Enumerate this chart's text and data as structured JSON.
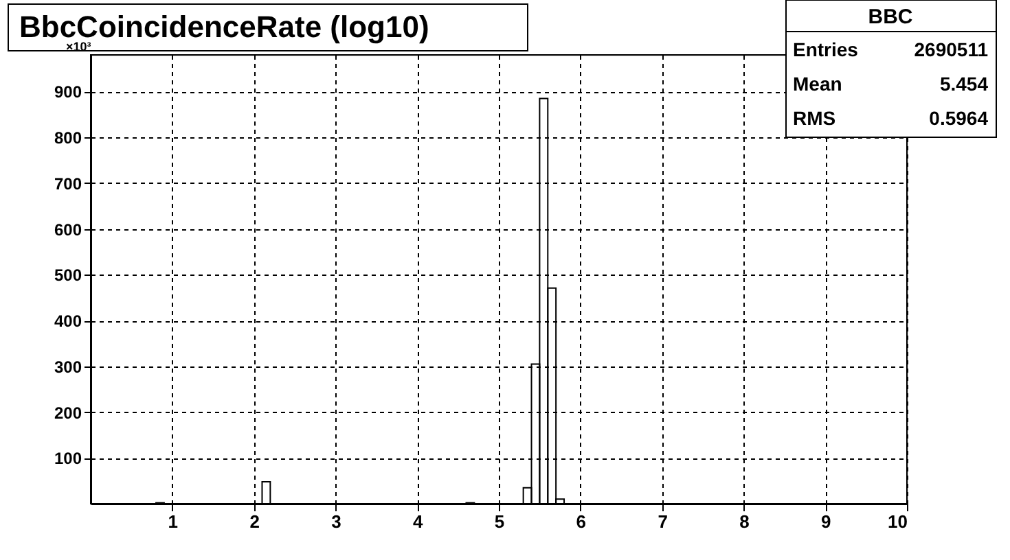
{
  "chart_data": {
    "type": "histogram",
    "title": "BbcCoincidenceRate (log10)",
    "ylabel": "×10³",
    "bins": [
      0,
      0.1,
      0.2,
      0.3,
      0.4,
      0.5,
      0.6,
      0.7,
      0.8,
      0.9,
      1,
      1.1,
      1.2,
      1.3,
      1.4,
      1.5,
      1.6,
      1.7,
      1.8,
      1.9,
      2,
      2.1,
      2.2,
      2.3,
      2.4,
      2.5,
      2.6,
      2.7,
      2.8,
      2.9,
      3,
      3.1,
      3.2,
      3.3,
      3.4,
      3.5,
      3.6,
      3.7,
      3.8,
      3.9,
      4,
      4.1,
      4.2,
      4.3,
      4.4,
      4.5,
      4.6,
      4.7,
      4.8,
      4.9,
      5,
      5.1,
      5.2,
      5.3,
      5.4,
      5.5,
      5.6,
      5.7,
      5.8,
      5.9,
      6,
      6.1,
      6.2,
      6.3,
      6.4,
      6.5,
      6.6,
      6.7,
      6.8,
      6.9,
      7,
      7.1,
      7.2,
      7.3,
      7.4,
      7.5,
      7.6,
      7.7,
      7.8,
      7.9,
      8,
      8.1,
      8.2,
      8.3,
      8.4,
      8.5,
      8.6,
      8.7,
      8.8,
      8.9,
      9,
      9.1,
      9.2,
      9.3,
      9.4,
      9.5,
      9.6,
      9.7,
      9.8,
      9.9,
      10
    ],
    "values": [
      0,
      0,
      0,
      0,
      0,
      0,
      0,
      0,
      2,
      0,
      0,
      0,
      0,
      0,
      0,
      0,
      0,
      0,
      0,
      0,
      0,
      48,
      0,
      0,
      0,
      0,
      0,
      0,
      0,
      0,
      0,
      0,
      0,
      0,
      0,
      0,
      0,
      0,
      0,
      0,
      0,
      0,
      0,
      0,
      0,
      0,
      2,
      0,
      0,
      0,
      0,
      0,
      0,
      35,
      305,
      885,
      471,
      10,
      0,
      0,
      0,
      0,
      0,
      0,
      0,
      0,
      0,
      0,
      0,
      0,
      0,
      0,
      0,
      0,
      0,
      0,
      0,
      0,
      0,
      0,
      0,
      0,
      0,
      0,
      0,
      0,
      0,
      0,
      0,
      0,
      0,
      0,
      0,
      0,
      0,
      0,
      0,
      0,
      0,
      0
    ],
    "color": "#000000",
    "xlim": [
      0,
      10
    ],
    "xticks": [
      1,
      2,
      3,
      4,
      5,
      6,
      7,
      8,
      9,
      10
    ],
    "ylim": [
      0,
      980
    ],
    "yticks": [
      100,
      200,
      300,
      400,
      500,
      600,
      700,
      800,
      900
    ],
    "grid": true,
    "annotations": [
      "BBC",
      "Entries",
      "2690511",
      "Mean",
      "5.454",
      "RMS",
      "0.5964"
    ]
  }
}
